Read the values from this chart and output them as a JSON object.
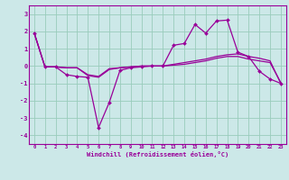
{
  "xlabel": "Windchill (Refroidissement éolien,°C)",
  "xlim": [
    -0.5,
    23.5
  ],
  "ylim": [
    -4.5,
    3.5
  ],
  "yticks": [
    -4,
    -3,
    -2,
    -1,
    0,
    1,
    2,
    3
  ],
  "xticks": [
    0,
    1,
    2,
    3,
    4,
    5,
    6,
    7,
    8,
    9,
    10,
    11,
    12,
    13,
    14,
    15,
    16,
    17,
    18,
    19,
    20,
    21,
    22,
    23
  ],
  "bg_color": "#cce8e8",
  "line_color": "#990099",
  "grid_color": "#99ccbb",
  "series1_x": [
    0,
    1,
    2,
    3,
    4,
    5,
    6,
    7,
    8,
    9,
    10,
    11,
    12,
    13,
    14,
    15,
    16,
    17,
    18,
    19,
    20,
    21,
    22,
    23
  ],
  "series1_y": [
    1.9,
    -0.05,
    -0.05,
    -0.5,
    -0.6,
    -0.65,
    -3.55,
    -2.1,
    -0.25,
    -0.1,
    -0.05,
    0.0,
    0.0,
    1.2,
    1.3,
    2.4,
    1.9,
    2.6,
    2.65,
    0.8,
    0.55,
    -0.3,
    -0.75,
    -1.0
  ],
  "series2_x": [
    0,
    1,
    2,
    3,
    4,
    5,
    6,
    7,
    8,
    9,
    10,
    11,
    12,
    13,
    14,
    15,
    16,
    17,
    18,
    19,
    20,
    21,
    22,
    23
  ],
  "series2_y": [
    1.9,
    -0.05,
    -0.05,
    -0.1,
    -0.1,
    -0.55,
    -0.65,
    -0.2,
    -0.1,
    -0.05,
    0.0,
    0.0,
    0.0,
    0.1,
    0.2,
    0.3,
    0.4,
    0.55,
    0.65,
    0.7,
    0.55,
    0.45,
    0.3,
    -1.0
  ],
  "series3_x": [
    0,
    1,
    2,
    3,
    4,
    5,
    6,
    7,
    8,
    9,
    10,
    11,
    12,
    13,
    14,
    15,
    16,
    17,
    18,
    19,
    20,
    21,
    22,
    23
  ],
  "series3_y": [
    1.9,
    -0.05,
    -0.05,
    -0.1,
    -0.1,
    -0.5,
    -0.6,
    -0.15,
    -0.1,
    -0.05,
    0.0,
    0.0,
    0.0,
    0.05,
    0.1,
    0.2,
    0.3,
    0.45,
    0.55,
    0.55,
    0.4,
    0.3,
    0.2,
    -0.95
  ]
}
